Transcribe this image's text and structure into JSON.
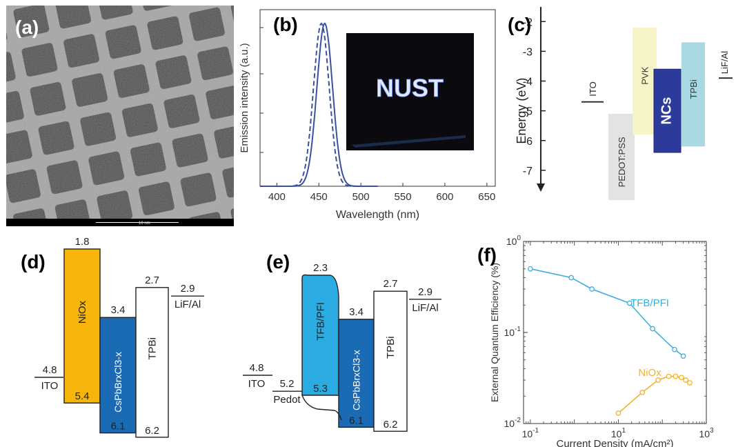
{
  "panels": {
    "a": {
      "label": "(a)",
      "scalebar": "10 nm"
    },
    "b": {
      "label": "(b)",
      "inset_text": "NUST"
    },
    "c": {
      "label": "(c)"
    },
    "d": {
      "label": "(d)"
    },
    "e": {
      "label": "(e)"
    },
    "f": {
      "label": "(f)"
    }
  },
  "chart_data": [
    {
      "panel": "b",
      "type": "line",
      "xlabel": "Wavelength (nm)",
      "ylabel": "Emission intensity (a.u.)",
      "xlim": [
        380,
        660
      ],
      "xticks": [
        "400",
        "450",
        "500",
        "550",
        "600",
        "650"
      ],
      "series": [
        {
          "style": "solid",
          "color": "#3a4fa0",
          "peak_x": 457,
          "fwhm": 22,
          "x": [
            380,
            420,
            430,
            440,
            447,
            452,
            457,
            462,
            467,
            472,
            480,
            490,
            520
          ],
          "y": [
            0.0,
            0.01,
            0.05,
            0.3,
            0.75,
            0.96,
            1.0,
            0.92,
            0.6,
            0.3,
            0.06,
            0.01,
            0.0
          ]
        },
        {
          "style": "dashed",
          "color": "#3a4fa0",
          "peak_x": 453,
          "fwhm": 22,
          "x": [
            420,
            430,
            437,
            443,
            448,
            453,
            458,
            463,
            470,
            480
          ],
          "y": [
            0.02,
            0.12,
            0.45,
            0.8,
            0.97,
            1.0,
            0.9,
            0.6,
            0.2,
            0.03
          ]
        }
      ]
    },
    {
      "panel": "c",
      "type": "diagram",
      "ylabel": "Energy (eV)",
      "yticks": [
        "-2",
        "-3",
        "-4",
        "-5",
        "-6",
        "-7"
      ],
      "ylim": [
        -8,
        -1.6
      ],
      "levels": [
        {
          "name": "ITO",
          "value": -4.7
        },
        {
          "name": "LiF/Al",
          "value": -3.9
        }
      ],
      "bands": [
        {
          "name": "PEDOT:PSS",
          "top": -5.1,
          "bottom": -8.0,
          "color": "#e3e3e3"
        },
        {
          "name": "PVK",
          "top": -2.2,
          "bottom": -5.8,
          "color": "#f7f4c7"
        },
        {
          "name": "NCs",
          "top": -3.6,
          "bottom": -6.4,
          "color": "#2c3a9c"
        },
        {
          "name": "TPBi",
          "top": -2.7,
          "bottom": -6.2,
          "color": "#a9d9e2"
        }
      ]
    },
    {
      "panel": "d",
      "type": "diagram",
      "levels": [
        {
          "name": "ITO",
          "value": "4.8"
        },
        {
          "name": "LiF/Al",
          "value": "2.9"
        }
      ],
      "bands": [
        {
          "name": "NiOx",
          "top": "1.8",
          "bottom": "5.4",
          "color": "#f7b60c"
        },
        {
          "name": "CsPbBrxCl3-x",
          "top": "3.4",
          "bottom": "6.1",
          "color": "#1a6ab4"
        },
        {
          "name": "TPBi",
          "top": "2.7",
          "bottom": "6.2",
          "color": "#ffffff"
        }
      ]
    },
    {
      "panel": "e",
      "type": "diagram",
      "levels": [
        {
          "name": "ITO",
          "value": "4.8"
        },
        {
          "name": "Pedot",
          "value": "5.2"
        },
        {
          "name": "LiF/Al",
          "value": "2.9"
        }
      ],
      "bands": [
        {
          "name": "TFB/PFI",
          "top": "2.3",
          "bottom": "5.3",
          "color": "#2aace2"
        },
        {
          "name": "CsPbBrxCl3-x",
          "top": "3.4",
          "bottom": "6.1",
          "color": "#1a6ab4"
        },
        {
          "name": "TPBi",
          "top": "2.7",
          "bottom": "6.2",
          "color": "#ffffff"
        }
      ]
    },
    {
      "panel": "f",
      "type": "line",
      "xlabel": "Current Density (mA/cm²)",
      "ylabel": "External Quantum Efficiency (%)",
      "xscale": "log",
      "yscale": "log",
      "xlim": [
        0.07,
        1000
      ],
      "ylim": [
        0.01,
        1
      ],
      "xticks": [
        {
          "value": 0.1,
          "base": "10",
          "exp": "-1"
        },
        {
          "value": 10,
          "base": "10",
          "exp": "1"
        },
        {
          "value": 1000,
          "base": "10",
          "exp": "3"
        }
      ],
      "yticks": [
        {
          "value": 0.01,
          "base": "10",
          "exp": "-2"
        },
        {
          "value": 0.1,
          "base": "10",
          "exp": "-1"
        },
        {
          "value": 1,
          "base": "10",
          "exp": "0"
        }
      ],
      "series": [
        {
          "name": "TFB/PFI",
          "color": "#3aaee0",
          "x": [
            0.1,
            0.85,
            2.5,
            18,
            60,
            190,
            300
          ],
          "y": [
            0.5,
            0.4,
            0.3,
            0.21,
            0.11,
            0.065,
            0.055
          ]
        },
        {
          "name": "NiOx",
          "color": "#f2b12a",
          "x": [
            10,
            35,
            80,
            140,
            200,
            270,
            340,
            420
          ],
          "y": [
            0.013,
            0.022,
            0.03,
            0.033,
            0.033,
            0.032,
            0.03,
            0.028
          ]
        }
      ]
    }
  ]
}
